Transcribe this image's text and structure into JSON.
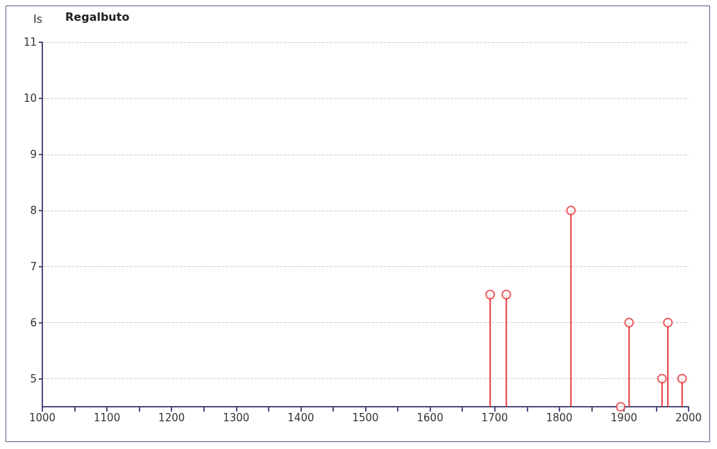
{
  "chart_data": {
    "type": "lollipop",
    "title": "Regalbuto",
    "ylabel": "Is",
    "x": [
      1693,
      1718,
      1818,
      1895,
      1908,
      1959,
      1968,
      1990
    ],
    "values": [
      6.5,
      6.5,
      8,
      4.5,
      6,
      5,
      6,
      5
    ],
    "color": "#e8383d",
    "marker": "circle",
    "xlim": [
      1000,
      2000
    ],
    "xticks": [
      1000,
      {
        "value": 1050,
        "label": null
      },
      1100,
      {
        "value": 1150,
        "label": null
      },
      1200,
      {
        "value": 1250,
        "label": null
      },
      1300,
      {
        "value": 1350,
        "label": null
      },
      1400,
      {
        "value": 1450,
        "label": null
      },
      1500,
      {
        "value": 1550,
        "label": null
      },
      1600,
      {
        "value": 1650,
        "label": null
      },
      1700,
      {
        "value": 1750,
        "label": null
      },
      1800,
      {
        "value": 1850,
        "label": null
      },
      1900,
      {
        "value": 1950,
        "label": null
      },
      2000
    ],
    "ylim": [
      4.5,
      11
    ],
    "yticks": [
      5,
      6,
      7,
      8,
      9,
      10,
      11
    ],
    "grid": "y"
  }
}
